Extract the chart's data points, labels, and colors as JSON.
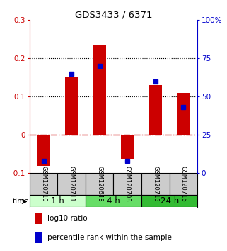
{
  "title": "GDS3433 / 6371",
  "samples": [
    "GSM120710",
    "GSM120711",
    "GSM120648",
    "GSM120708",
    "GSM120715",
    "GSM120716"
  ],
  "log10_ratio": [
    -0.08,
    0.15,
    0.235,
    -0.062,
    0.13,
    0.11
  ],
  "percentile_rank": [
    8,
    65,
    70,
    8,
    60,
    43
  ],
  "ylim_left": [
    -0.1,
    0.3
  ],
  "ylim_right": [
    0,
    100
  ],
  "yticks_left": [
    -0.1,
    0.0,
    0.1,
    0.2,
    0.3
  ],
  "yticks_right": [
    0,
    25,
    50,
    75,
    100
  ],
  "ytick_labels_left": [
    "-0.1",
    "0",
    "0.1",
    "0.2",
    "0.3"
  ],
  "ytick_labels_right": [
    "0",
    "25",
    "50",
    "75",
    "100%"
  ],
  "hlines": [
    0.1,
    0.2
  ],
  "bar_color": "#cc0000",
  "dot_color": "#0000cc",
  "zero_line_color": "#cc0000",
  "groups": [
    {
      "label": "1 h",
      "samples": [
        0,
        1
      ],
      "color": "#ccffcc"
    },
    {
      "label": "4 h",
      "samples": [
        2,
        3
      ],
      "color": "#66dd66"
    },
    {
      "label": "24 h",
      "samples": [
        4,
        5
      ],
      "color": "#33bb33"
    }
  ],
  "time_label": "time",
  "legend_bar_label": "log10 ratio",
  "legend_dot_label": "percentile rank within the sample",
  "background_color": "#ffffff",
  "plot_bg_color": "#ffffff",
  "label_bg_color": "#cccccc"
}
